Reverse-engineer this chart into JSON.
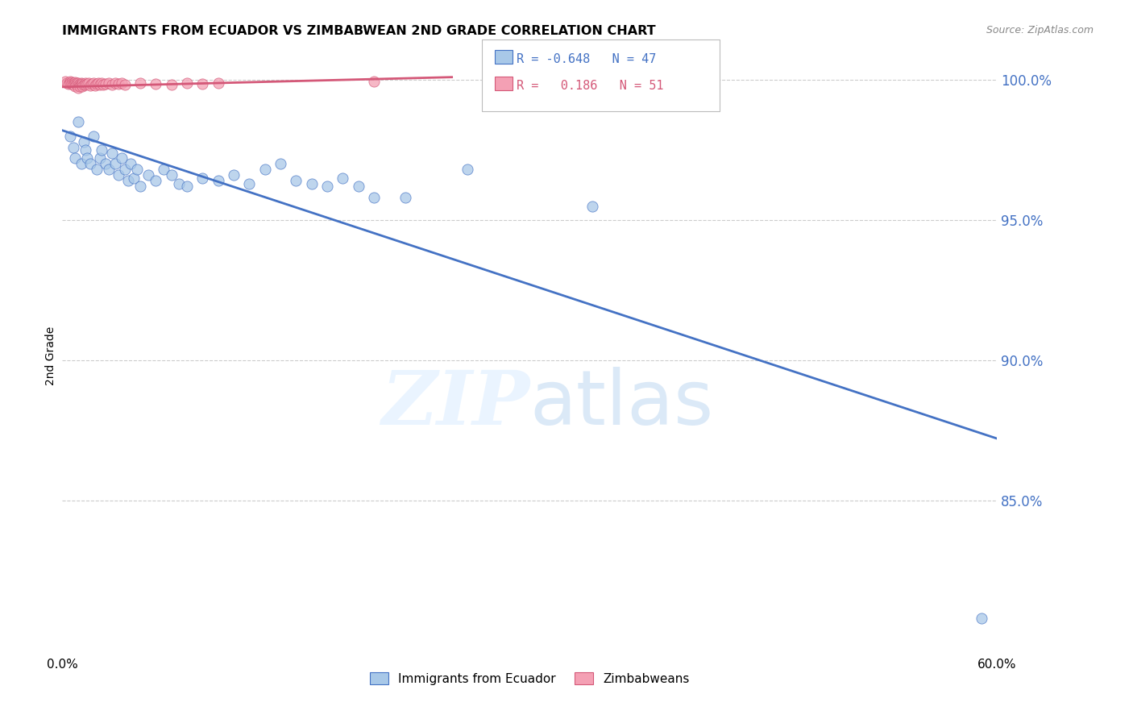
{
  "title": "IMMIGRANTS FROM ECUADOR VS ZIMBABWEAN 2ND GRADE CORRELATION CHART",
  "source": "Source: ZipAtlas.com",
  "ylabel": "2nd Grade",
  "xlim": [
    0.0,
    0.6
  ],
  "ylim": [
    0.795,
    1.008
  ],
  "yticks": [
    0.85,
    0.9,
    0.95,
    1.0
  ],
  "ytick_labels": [
    "85.0%",
    "90.0%",
    "95.0%",
    "100.0%"
  ],
  "xticks": [
    0.0,
    0.1,
    0.2,
    0.3,
    0.4,
    0.5,
    0.6
  ],
  "xtick_labels": [
    "0.0%",
    "",
    "",
    "",
    "",
    "",
    "60.0%"
  ],
  "legend_r_blue": "-0.648",
  "legend_n_blue": "47",
  "legend_r_pink": "0.186",
  "legend_n_pink": "51",
  "blue_color": "#a8c8e8",
  "pink_color": "#f4a0b4",
  "trendline_blue": "#4472c4",
  "trendline_pink": "#d45878",
  "blue_scatter": [
    [
      0.005,
      0.98
    ],
    [
      0.007,
      0.976
    ],
    [
      0.008,
      0.972
    ],
    [
      0.01,
      0.985
    ],
    [
      0.012,
      0.97
    ],
    [
      0.014,
      0.978
    ],
    [
      0.015,
      0.975
    ],
    [
      0.016,
      0.972
    ],
    [
      0.018,
      0.97
    ],
    [
      0.02,
      0.98
    ],
    [
      0.022,
      0.968
    ],
    [
      0.024,
      0.972
    ],
    [
      0.025,
      0.975
    ],
    [
      0.028,
      0.97
    ],
    [
      0.03,
      0.968
    ],
    [
      0.032,
      0.974
    ],
    [
      0.034,
      0.97
    ],
    [
      0.036,
      0.966
    ],
    [
      0.038,
      0.972
    ],
    [
      0.04,
      0.968
    ],
    [
      0.042,
      0.964
    ],
    [
      0.044,
      0.97
    ],
    [
      0.046,
      0.965
    ],
    [
      0.048,
      0.968
    ],
    [
      0.05,
      0.962
    ],
    [
      0.055,
      0.966
    ],
    [
      0.06,
      0.964
    ],
    [
      0.065,
      0.968
    ],
    [
      0.07,
      0.966
    ],
    [
      0.075,
      0.963
    ],
    [
      0.08,
      0.962
    ],
    [
      0.09,
      0.965
    ],
    [
      0.1,
      0.964
    ],
    [
      0.11,
      0.966
    ],
    [
      0.12,
      0.963
    ],
    [
      0.13,
      0.968
    ],
    [
      0.14,
      0.97
    ],
    [
      0.15,
      0.964
    ],
    [
      0.16,
      0.963
    ],
    [
      0.17,
      0.962
    ],
    [
      0.18,
      0.965
    ],
    [
      0.19,
      0.962
    ],
    [
      0.2,
      0.958
    ],
    [
      0.22,
      0.958
    ],
    [
      0.26,
      0.968
    ],
    [
      0.34,
      0.955
    ],
    [
      0.59,
      0.808
    ]
  ],
  "pink_scatter": [
    [
      0.002,
      0.9995
    ],
    [
      0.003,
      0.999
    ],
    [
      0.004,
      0.9985
    ],
    [
      0.005,
      0.9995
    ],
    [
      0.005,
      0.9988
    ],
    [
      0.006,
      0.9992
    ],
    [
      0.006,
      0.9985
    ],
    [
      0.007,
      0.999
    ],
    [
      0.007,
      0.9982
    ],
    [
      0.008,
      0.9992
    ],
    [
      0.008,
      0.9985
    ],
    [
      0.008,
      0.9978
    ],
    [
      0.009,
      0.999
    ],
    [
      0.009,
      0.9983
    ],
    [
      0.01,
      0.9988
    ],
    [
      0.01,
      0.998
    ],
    [
      0.01,
      0.9972
    ],
    [
      0.011,
      0.9985
    ],
    [
      0.011,
      0.9978
    ],
    [
      0.012,
      0.999
    ],
    [
      0.012,
      0.9983
    ],
    [
      0.013,
      0.9985
    ],
    [
      0.013,
      0.9978
    ],
    [
      0.014,
      0.9982
    ],
    [
      0.015,
      0.999
    ],
    [
      0.015,
      0.9983
    ],
    [
      0.016,
      0.9985
    ],
    [
      0.017,
      0.9988
    ],
    [
      0.018,
      0.998
    ],
    [
      0.019,
      0.9985
    ],
    [
      0.02,
      0.9988
    ],
    [
      0.021,
      0.998
    ],
    [
      0.022,
      0.9985
    ],
    [
      0.023,
      0.999
    ],
    [
      0.024,
      0.9982
    ],
    [
      0.025,
      0.9988
    ],
    [
      0.026,
      0.9983
    ],
    [
      0.028,
      0.9985
    ],
    [
      0.03,
      0.9988
    ],
    [
      0.032,
      0.9983
    ],
    [
      0.034,
      0.999
    ],
    [
      0.036,
      0.9985
    ],
    [
      0.038,
      0.9988
    ],
    [
      0.04,
      0.9983
    ],
    [
      0.05,
      0.9988
    ],
    [
      0.06,
      0.9985
    ],
    [
      0.07,
      0.9983
    ],
    [
      0.08,
      0.9988
    ],
    [
      0.09,
      0.9985
    ],
    [
      0.1,
      0.999
    ],
    [
      0.2,
      0.9995
    ]
  ],
  "blue_trend_x": [
    0.0,
    0.6
  ],
  "blue_trend_y": [
    0.982,
    0.872
  ],
  "pink_trend_x": [
    0.0,
    0.25
  ],
  "pink_trend_y": [
    0.9975,
    1.001
  ]
}
